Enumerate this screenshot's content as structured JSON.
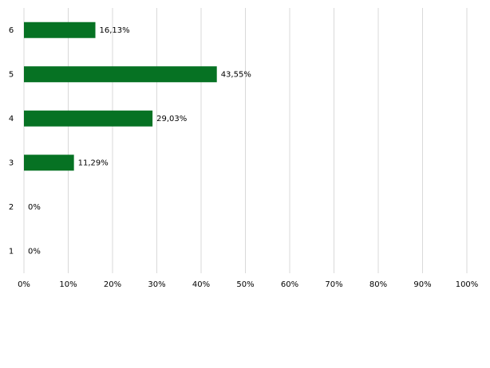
{
  "chart_data": {
    "type": "hbar",
    "categories": [
      "1",
      "2",
      "3",
      "4",
      "5",
      "6"
    ],
    "values": [
      0,
      0,
      11.29,
      29.03,
      43.55,
      16.13
    ],
    "value_labels": [
      "0%",
      "0%",
      "11,29%",
      "29,03%",
      "43,55%",
      "16,13%"
    ],
    "color": "#067223",
    "xlim": [
      0,
      100
    ],
    "xticks": [
      {
        "value": 0,
        "label": "0%"
      },
      {
        "value": 10,
        "label": "10%"
      },
      {
        "value": 20,
        "label": "20%"
      },
      {
        "value": 30,
        "label": "30%"
      },
      {
        "value": 40,
        "label": "40%"
      },
      {
        "value": 50,
        "label": "50%"
      },
      {
        "value": 60,
        "label": "60%"
      },
      {
        "value": 70,
        "label": "70%"
      },
      {
        "value": 80,
        "label": "80%"
      },
      {
        "value": 90,
        "label": "90%"
      },
      {
        "value": 100,
        "label": "100%"
      }
    ],
    "grid": true
  }
}
